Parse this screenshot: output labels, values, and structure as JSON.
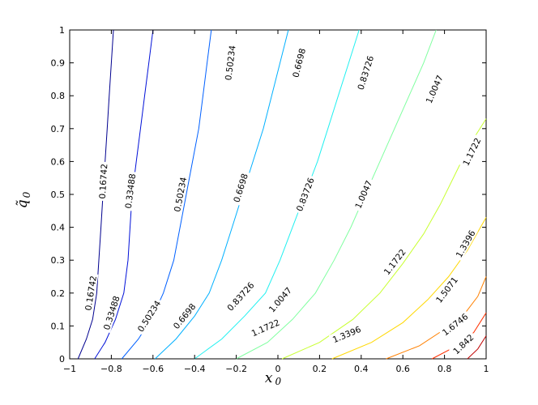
{
  "chart_data": {
    "type": "contour",
    "title": "",
    "xlabel": "x",
    "xlabel_sub": "0",
    "ylabel": "q̃",
    "ylabel_sub": "0",
    "xlim": [
      -1,
      1
    ],
    "ylim": [
      0,
      1
    ],
    "xticks": [
      "−1",
      "−0.8",
      "−0.6",
      "−0.4",
      "−0.2",
      "0",
      "0.2",
      "0.4",
      "0.6",
      "0.8",
      "1"
    ],
    "yticks": [
      "0",
      "0.1",
      "0.2",
      "0.3",
      "0.4",
      "0.5",
      "0.6",
      "0.7",
      "0.8",
      "0.9",
      "1"
    ],
    "grid": false,
    "contours": [
      {
        "level": "0.16742",
        "color": "#00008f",
        "points": [
          [
            -0.96,
            0
          ],
          [
            -0.92,
            0.06
          ],
          [
            -0.89,
            0.12
          ],
          [
            -0.87,
            0.2
          ],
          [
            -0.86,
            0.3
          ],
          [
            -0.85,
            0.4
          ],
          [
            -0.84,
            0.5
          ],
          [
            -0.83,
            0.6
          ],
          [
            -0.82,
            0.7
          ],
          [
            -0.81,
            0.8
          ],
          [
            -0.8,
            0.9
          ],
          [
            -0.79,
            1.0
          ]
        ],
        "labels": [
          {
            "x": -0.9,
            "y": 0.2,
            "text": "0.16742"
          },
          {
            "x": -0.84,
            "y": 0.54,
            "text": "0.16742"
          }
        ]
      },
      {
        "level": "0.33488",
        "color": "#0010d8",
        "points": [
          [
            -0.88,
            0
          ],
          [
            -0.83,
            0.05
          ],
          [
            -0.78,
            0.12
          ],
          [
            -0.74,
            0.2
          ],
          [
            -0.72,
            0.3
          ],
          [
            -0.71,
            0.4
          ],
          [
            -0.7,
            0.5
          ],
          [
            -0.68,
            0.6
          ],
          [
            -0.66,
            0.7
          ],
          [
            -0.64,
            0.8
          ],
          [
            -0.62,
            0.9
          ],
          [
            -0.6,
            1.0
          ]
        ],
        "labels": [
          {
            "x": -0.8,
            "y": 0.14,
            "text": "0.33488"
          },
          {
            "x": -0.71,
            "y": 0.51,
            "text": "0.33488"
          }
        ]
      },
      {
        "level": "0.50234",
        "color": "#0060ff",
        "points": [
          [
            -0.75,
            0
          ],
          [
            -0.67,
            0.06
          ],
          [
            -0.6,
            0.13
          ],
          [
            -0.55,
            0.2
          ],
          [
            -0.5,
            0.3
          ],
          [
            -0.47,
            0.4
          ],
          [
            -0.44,
            0.5
          ],
          [
            -0.41,
            0.6
          ],
          [
            -0.38,
            0.7
          ],
          [
            -0.36,
            0.8
          ],
          [
            -0.34,
            0.9
          ],
          [
            -0.32,
            1.0
          ]
        ],
        "labels": [
          {
            "x": -0.62,
            "y": 0.13,
            "text": "0.50234"
          },
          {
            "x": -0.47,
            "y": 0.5,
            "text": "0.50234"
          },
          {
            "x": -0.23,
            "y": 0.9,
            "text": "0.50234"
          }
        ]
      },
      {
        "level": "0.6698",
        "color": "#00b0ff",
        "points": [
          [
            -0.59,
            0
          ],
          [
            -0.49,
            0.06
          ],
          [
            -0.4,
            0.13
          ],
          [
            -0.33,
            0.2
          ],
          [
            -0.27,
            0.3
          ],
          [
            -0.22,
            0.4
          ],
          [
            -0.17,
            0.5
          ],
          [
            -0.12,
            0.6
          ],
          [
            -0.07,
            0.7
          ],
          [
            -0.03,
            0.8
          ],
          [
            0.01,
            0.9
          ],
          [
            0.05,
            1.0
          ]
        ],
        "labels": [
          {
            "x": -0.45,
            "y": 0.13,
            "text": "0.6698"
          },
          {
            "x": -0.18,
            "y": 0.52,
            "text": "0.6698"
          },
          {
            "x": 0.1,
            "y": 0.9,
            "text": "0.6698"
          }
        ]
      },
      {
        "level": "0.83726",
        "color": "#20f0f0",
        "points": [
          [
            -0.4,
            0
          ],
          [
            -0.27,
            0.06
          ],
          [
            -0.16,
            0.13
          ],
          [
            -0.06,
            0.2
          ],
          [
            0.01,
            0.3
          ],
          [
            0.07,
            0.4
          ],
          [
            0.13,
            0.5
          ],
          [
            0.19,
            0.6
          ],
          [
            0.24,
            0.7
          ],
          [
            0.29,
            0.8
          ],
          [
            0.34,
            0.9
          ],
          [
            0.39,
            1.0
          ]
        ],
        "labels": [
          {
            "x": -0.18,
            "y": 0.19,
            "text": "0.83726"
          },
          {
            "x": 0.13,
            "y": 0.5,
            "text": "0.83726"
          },
          {
            "x": 0.42,
            "y": 0.87,
            "text": "0.83726"
          }
        ]
      },
      {
        "level": "1.0047",
        "color": "#80ffa0",
        "points": [
          [
            -0.2,
            0
          ],
          [
            -0.05,
            0.05
          ],
          [
            0.07,
            0.12
          ],
          [
            0.18,
            0.2
          ],
          [
            0.27,
            0.3
          ],
          [
            0.35,
            0.4
          ],
          [
            0.42,
            0.5
          ],
          [
            0.49,
            0.6
          ],
          [
            0.56,
            0.7
          ],
          [
            0.63,
            0.8
          ],
          [
            0.7,
            0.9
          ],
          [
            0.76,
            1.0
          ]
        ],
        "labels": [
          {
            "x": 0.01,
            "y": 0.18,
            "text": "1.0047"
          },
          {
            "x": 0.41,
            "y": 0.5,
            "text": "1.0047"
          },
          {
            "x": 0.75,
            "y": 0.82,
            "text": "1.0047"
          }
        ]
      },
      {
        "level": "1.1722",
        "color": "#c8ff30",
        "points": [
          [
            0.02,
            0
          ],
          [
            0.2,
            0.05
          ],
          [
            0.36,
            0.12
          ],
          [
            0.49,
            0.2
          ],
          [
            0.6,
            0.29
          ],
          [
            0.7,
            0.38
          ],
          [
            0.78,
            0.47
          ],
          [
            0.85,
            0.56
          ],
          [
            0.92,
            0.65
          ],
          [
            1.0,
            0.73
          ]
        ],
        "labels": [
          {
            "x": -0.06,
            "y": 0.095,
            "text": "1.1722"
          },
          {
            "x": 0.56,
            "y": 0.295,
            "text": "1.1722"
          },
          {
            "x": 0.93,
            "y": 0.63,
            "text": "1.1722"
          }
        ]
      },
      {
        "level": "1.3396",
        "color": "#ffd800",
        "points": [
          [
            0.26,
            0
          ],
          [
            0.45,
            0.05
          ],
          [
            0.6,
            0.11
          ],
          [
            0.72,
            0.18
          ],
          [
            0.82,
            0.25
          ],
          [
            0.91,
            0.33
          ],
          [
            1.0,
            0.43
          ]
        ],
        "labels": [
          {
            "x": 0.33,
            "y": 0.075,
            "text": "1.3396"
          },
          {
            "x": 0.9,
            "y": 0.35,
            "text": "1.3396"
          }
        ]
      },
      {
        "level": "1.5071",
        "color": "#ff8000",
        "points": [
          [
            0.52,
            0
          ],
          [
            0.68,
            0.04
          ],
          [
            0.8,
            0.09
          ],
          [
            0.9,
            0.14
          ],
          [
            0.96,
            0.19
          ],
          [
            1.0,
            0.25
          ]
        ],
        "labels": [
          {
            "x": 0.81,
            "y": 0.21,
            "text": "1.5071"
          }
        ]
      },
      {
        "level": "1.6746",
        "color": "#ff3000",
        "points": [
          [
            0.74,
            0
          ],
          [
            0.86,
            0.04
          ],
          [
            0.94,
            0.08
          ],
          [
            1.0,
            0.14
          ]
        ],
        "labels": [
          {
            "x": 0.85,
            "y": 0.105,
            "text": "1.6746"
          }
        ]
      },
      {
        "level": "1.842",
        "color": "#c00000",
        "points": [
          [
            0.91,
            0
          ],
          [
            0.96,
            0.03
          ],
          [
            1.0,
            0.07
          ]
        ],
        "labels": [
          {
            "x": 0.89,
            "y": 0.045,
            "text": "1.842"
          }
        ]
      }
    ]
  }
}
